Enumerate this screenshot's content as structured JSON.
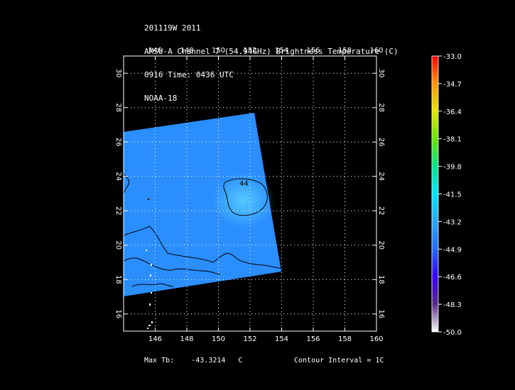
{
  "header": {
    "line1": "201119W 2011",
    "line2": "AMSU-A Channel 7 (54.94GHz) Brightness Temperature (C)",
    "line3": "0916 Time: 0436 UTC",
    "line4": "NOAA-18"
  },
  "footer": {
    "max_tb_label": "Max Tb:",
    "max_tb_value": "-43.3214",
    "max_tb_unit": "C",
    "contour_interval": "Contour Interval = 1C"
  },
  "chart_data": {
    "type": "heatmap",
    "x_ticks": [
      146,
      148,
      150,
      152,
      154,
      156,
      158,
      160
    ],
    "y_ticks": [
      16,
      18,
      20,
      22,
      24,
      26,
      28,
      30
    ],
    "xlim": [
      144,
      160
    ],
    "ylim": [
      15,
      31
    ],
    "grid": true,
    "contour_label": "44",
    "swath_color": "#2a8eff",
    "max_tb": -43.3214,
    "colorbar": {
      "labels": [
        "-33.0",
        "-34.7",
        "-36.4",
        "-38.1",
        "-39.8",
        "-41.5",
        "-43.2",
        "-44.9",
        "-46.6",
        "-48.3",
        "-50.0"
      ],
      "min": -50.0,
      "max": -33.0,
      "colors": [
        "#ffffff",
        "#5a2a8a",
        "#3a00ff",
        "#1e6bff",
        "#28a8ff",
        "#00e6ff",
        "#00e68c",
        "#64e600",
        "#e6e600",
        "#ff9600",
        "#ff0000"
      ]
    }
  }
}
